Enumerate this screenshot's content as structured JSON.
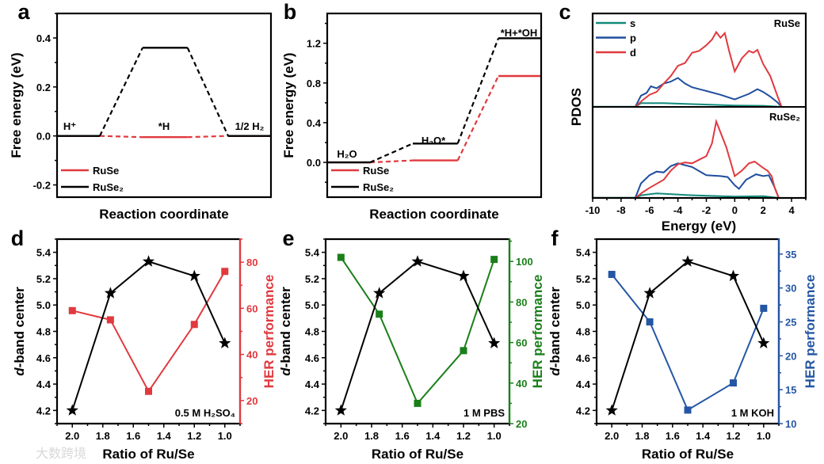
{
  "panel_letters": [
    "a",
    "b",
    "c",
    "d",
    "e",
    "f"
  ],
  "watermark": "大数跨境",
  "colors": {
    "red": "#e0393e",
    "black": "#000000",
    "green": "#1a7f1a",
    "blue": "#2456a4",
    "s": "#138a7c",
    "p": "#1f4e9e",
    "d": "#e03a3f"
  },
  "chart_data": [
    {
      "type": "line",
      "panel": "a",
      "title": "",
      "xlabel": "Reaction coordinate",
      "ylabel": "Free energy (eV)",
      "ylim": [
        -0.25,
        0.5
      ],
      "ytick_labels": [
        "-0.2",
        "0.0",
        "0.2",
        "0.4"
      ],
      "yticks": [
        -0.2,
        0.0,
        0.2,
        0.4
      ],
      "states": [
        "H⁺",
        "*H",
        "1/2 H₂"
      ],
      "legend_position": "bottom-left",
      "series": [
        {
          "name": "RuSe",
          "color": "#e0393e",
          "values": [
            0.0,
            -0.005,
            0.0
          ]
        },
        {
          "name": "RuSe₂",
          "color": "#000000",
          "values": [
            0.0,
            0.36,
            0.0
          ]
        }
      ]
    },
    {
      "type": "line",
      "panel": "b",
      "title": "",
      "xlabel": "Reaction coordinate",
      "ylabel": "Free energy (eV)",
      "ylim": [
        -0.35,
        1.5
      ],
      "ytick_labels": [
        "0.0",
        "0.4",
        "0.8",
        "1.2"
      ],
      "yticks": [
        0.0,
        0.4,
        0.8,
        1.2
      ],
      "states": [
        "H₂O",
        "H₂O*",
        "*H+*OH"
      ],
      "legend_position": "bottom-left",
      "series": [
        {
          "name": "RuSe",
          "color": "#e0393e",
          "values": [
            0.0,
            0.02,
            0.87
          ]
        },
        {
          "name": "RuSe₂",
          "color": "#000000",
          "values": [
            0.0,
            0.19,
            1.25
          ]
        }
      ]
    },
    {
      "type": "line",
      "panel": "c",
      "xlabel": "Energy (eV)",
      "ylabel": "PDOS",
      "xlim": [
        -10,
        5
      ],
      "xtick_labels": [
        "-10",
        "-8",
        "-6",
        "-4",
        "-2",
        "0",
        "2",
        "4"
      ],
      "xticks": [
        -10,
        -8,
        -6,
        -4,
        -2,
        0,
        2,
        4
      ],
      "legend_position": "top-left",
      "legend": [
        "s",
        "p",
        "d"
      ],
      "subpanels": [
        {
          "label": "RuSe",
          "series": [
            {
              "name": "s",
              "x": [
                -7,
                -6.6,
                -5,
                -3,
                0,
                2,
                3.3
              ],
              "y": [
                0,
                0.04,
                0.04,
                0.03,
                0.015,
                0.012,
                0
              ]
            },
            {
              "name": "p",
              "x": [
                -7,
                -6.6,
                -6.2,
                -5.9,
                -5.5,
                -5,
                -4.5,
                -4,
                -3.5,
                -3,
                -2,
                -1,
                0,
                0.5,
                1,
                1.6,
                2,
                2.5,
                3,
                3.3
              ],
              "y": [
                0,
                0.12,
                0.15,
                0.22,
                0.2,
                0.25,
                0.27,
                0.31,
                0.25,
                0.21,
                0.17,
                0.13,
                0.08,
                0.11,
                0.14,
                0.19,
                0.16,
                0.11,
                0.05,
                0
              ]
            },
            {
              "name": "d",
              "x": [
                -7,
                -6.5,
                -6,
                -5.5,
                -5,
                -4.5,
                -4,
                -3.5,
                -3,
                -2.5,
                -2,
                -1.6,
                -1.3,
                -1,
                -0.7,
                -0.4,
                0,
                0.5,
                1,
                1.3,
                1.6,
                2,
                2.5,
                3,
                3.3
              ],
              "y": [
                0,
                0.07,
                0.13,
                0.16,
                0.25,
                0.33,
                0.44,
                0.47,
                0.58,
                0.6,
                0.66,
                0.72,
                0.8,
                0.74,
                0.79,
                0.6,
                0.38,
                0.52,
                0.6,
                0.58,
                0.61,
                0.46,
                0.33,
                0.12,
                0
              ]
            }
          ]
        },
        {
          "label": "RuSe₂",
          "series": [
            {
              "name": "s",
              "x": [
                -7,
                -6.6,
                -5.5,
                -3,
                0,
                2,
                3.1
              ],
              "y": [
                0,
                0.03,
                0.05,
                0.03,
                0.015,
                0.02,
                0
              ]
            },
            {
              "name": "p",
              "x": [
                -7,
                -6.6,
                -6,
                -5.5,
                -5,
                -4.5,
                -4,
                -3.5,
                -3,
                -2,
                -1,
                -0.5,
                0,
                0.3,
                0.8,
                1.5,
                2,
                2.4,
                2.8,
                3.1
              ],
              "y": [
                0,
                0.16,
                0.25,
                0.29,
                0.28,
                0.35,
                0.38,
                0.36,
                0.34,
                0.25,
                0.24,
                0.23,
                0.14,
                0.1,
                0.2,
                0.26,
                0.24,
                0.25,
                0.12,
                0
              ]
            },
            {
              "name": "d",
              "x": [
                -7,
                -6.5,
                -6,
                -5,
                -4.5,
                -4,
                -3.5,
                -3,
                -2.5,
                -2,
                -1.6,
                -1.3,
                -1,
                -0.6,
                -0.3,
                0,
                0.5,
                1,
                1.4,
                2,
                2.3,
                2.6,
                2.8,
                3.1
              ],
              "y": [
                0,
                0.06,
                0.11,
                0.2,
                0.3,
                0.37,
                0.39,
                0.38,
                0.42,
                0.46,
                0.6,
                0.84,
                0.72,
                0.56,
                0.4,
                0.24,
                0.3,
                0.38,
                0.4,
                0.33,
                0.3,
                0.24,
                0.12,
                0
              ]
            }
          ]
        }
      ]
    },
    {
      "type": "line",
      "panel": "d",
      "xlabel": "Ratio of Ru/Se",
      "ylabel_italic": "d",
      "ylabel": "-band center",
      "y2label": "HER performance",
      "annotation": "0.5 M H₂SO₄",
      "x": [
        2.0,
        1.75,
        1.5,
        1.2,
        1.0
      ],
      "xlim": [
        2.1,
        0.9
      ],
      "xtick_labels": [
        "2.0",
        "1.8",
        "1.6",
        "1.4",
        "1.2",
        "1.0"
      ],
      "xticks": [
        2.0,
        1.8,
        1.6,
        1.4,
        1.2,
        1.0
      ],
      "ylim": [
        4.1,
        5.5
      ],
      "ytick_labels": [
        "4.2",
        "4.4",
        "4.6",
        "4.8",
        "5.0",
        "5.2",
        "5.4"
      ],
      "yticks": [
        4.2,
        4.4,
        4.6,
        4.8,
        5.0,
        5.2,
        5.4
      ],
      "y2lim": [
        10,
        90
      ],
      "y2tick_labels": [
        "20",
        "40",
        "60",
        "80"
      ],
      "y2ticks": [
        20,
        40,
        60,
        80
      ],
      "series": [
        {
          "name": "d-band center",
          "axis": "left",
          "marker": "star",
          "color": "#000000",
          "values": [
            4.2,
            5.09,
            5.33,
            5.22,
            4.71
          ]
        },
        {
          "name": "HER performance",
          "axis": "right",
          "marker": "square",
          "color": "#e0393e",
          "values": [
            59,
            55,
            24,
            53,
            76
          ]
        }
      ]
    },
    {
      "type": "line",
      "panel": "e",
      "xlabel": "Ratio of Ru/Se",
      "ylabel_italic": "d",
      "ylabel": "-band center",
      "y2label": "HER performance",
      "annotation": "1 M PBS",
      "x": [
        2.0,
        1.75,
        1.5,
        1.2,
        1.0
      ],
      "xlim": [
        2.1,
        0.9
      ],
      "xtick_labels": [
        "2.0",
        "1.8",
        "1.6",
        "1.4",
        "1.2",
        "1.0"
      ],
      "xticks": [
        2.0,
        1.8,
        1.6,
        1.4,
        1.2,
        1.0
      ],
      "ylim": [
        4.1,
        5.5
      ],
      "ytick_labels": [
        "4.2",
        "4.4",
        "4.6",
        "4.8",
        "5.0",
        "5.2",
        "5.4"
      ],
      "yticks": [
        4.2,
        4.4,
        4.6,
        4.8,
        5.0,
        5.2,
        5.4
      ],
      "y2lim": [
        20,
        111
      ],
      "y2tick_labels": [
        "20",
        "40",
        "60",
        "80",
        "100"
      ],
      "y2ticks": [
        20,
        40,
        60,
        80,
        100
      ],
      "series": [
        {
          "name": "d-band center",
          "axis": "left",
          "marker": "star",
          "color": "#000000",
          "values": [
            4.2,
            5.09,
            5.33,
            5.22,
            4.71
          ]
        },
        {
          "name": "HER performance",
          "axis": "right",
          "marker": "square",
          "color": "#1a7f1a",
          "values": [
            102,
            74,
            30,
            56,
            101
          ]
        }
      ]
    },
    {
      "type": "line",
      "panel": "f",
      "xlabel": "Ratio of Ru/Se",
      "ylabel_italic": "d",
      "ylabel": "-band center",
      "y2label": "HER performance",
      "annotation": "1 M KOH",
      "x": [
        2.0,
        1.75,
        1.5,
        1.2,
        1.0
      ],
      "xlim": [
        2.1,
        0.9
      ],
      "xtick_labels": [
        "2.0",
        "1.8",
        "1.6",
        "1.4",
        "1.2",
        "1.0"
      ],
      "xticks": [
        2.0,
        1.8,
        1.6,
        1.4,
        1.2,
        1.0
      ],
      "ylim": [
        4.1,
        5.5
      ],
      "ytick_labels": [
        "4.2",
        "4.4",
        "4.6",
        "4.8",
        "5.0",
        "5.2",
        "5.4"
      ],
      "yticks": [
        4.2,
        4.4,
        4.6,
        4.8,
        5.0,
        5.2,
        5.4
      ],
      "y2lim": [
        10,
        37.2
      ],
      "y2tick_labels": [
        "10",
        "15",
        "20",
        "25",
        "30",
        "35"
      ],
      "y2ticks": [
        10,
        15,
        20,
        25,
        30,
        35
      ],
      "series": [
        {
          "name": "d-band center",
          "axis": "left",
          "marker": "star",
          "color": "#000000",
          "values": [
            4.2,
            5.09,
            5.33,
            5.22,
            4.71
          ]
        },
        {
          "name": "HER performance",
          "axis": "right",
          "marker": "square",
          "color": "#2456a4",
          "values": [
            32,
            25,
            12,
            16,
            27
          ]
        }
      ]
    }
  ]
}
